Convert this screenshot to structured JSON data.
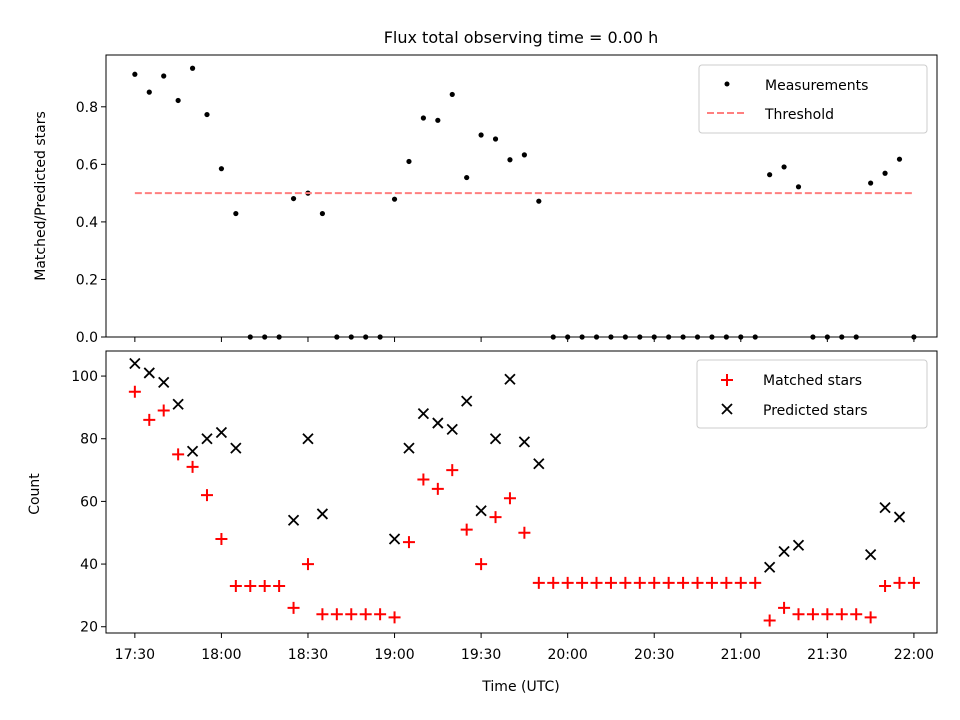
{
  "chart_data": [
    {
      "type": "scatter",
      "title": "Flux total observing time = 0.00 h",
      "xlabel": "",
      "ylabel": "Matched/Predicted stars",
      "xlim": [
        "17:20",
        "22:08"
      ],
      "ylim": [
        0,
        0.98
      ],
      "yticks": [
        0.0,
        0.2,
        0.4,
        0.6,
        0.8
      ],
      "ytick_labels": [
        "0.0",
        "0.2",
        "0.4",
        "0.6",
        "0.8"
      ],
      "legend_position": "top-right",
      "series": [
        {
          "name": "Measurements",
          "marker": "dot",
          "color": "#000000",
          "points": [
            [
              "17:30",
              0.913
            ],
            [
              "17:35",
              0.851
            ],
            [
              "17:40",
              0.907
            ],
            [
              "17:45",
              0.822
            ],
            [
              "17:50",
              0.934
            ],
            [
              "17:55",
              0.773
            ],
            [
              "18:00",
              0.585
            ],
            [
              "18:05",
              0.429
            ],
            [
              "18:10",
              0.0
            ],
            [
              "18:15",
              0.0
            ],
            [
              "18:20",
              0.0
            ],
            [
              "18:25",
              0.481
            ],
            [
              "18:30",
              0.5
            ],
            [
              "18:35",
              0.429
            ],
            [
              "18:40",
              0.0
            ],
            [
              "18:45",
              0.0
            ],
            [
              "18:50",
              0.0
            ],
            [
              "18:55",
              0.0
            ],
            [
              "19:00",
              0.479
            ],
            [
              "19:05",
              0.61
            ],
            [
              "19:10",
              0.761
            ],
            [
              "19:15",
              0.753
            ],
            [
              "19:20",
              0.843
            ],
            [
              "19:25",
              0.554
            ],
            [
              "19:30",
              0.702
            ],
            [
              "19:35",
              0.688
            ],
            [
              "19:40",
              0.616
            ],
            [
              "19:45",
              0.633
            ],
            [
              "19:50",
              0.472
            ],
            [
              "19:55",
              0.0
            ],
            [
              "20:00",
              0.0
            ],
            [
              "20:05",
              0.0
            ],
            [
              "20:10",
              0.0
            ],
            [
              "20:15",
              0.0
            ],
            [
              "20:20",
              0.0
            ],
            [
              "20:25",
              0.0
            ],
            [
              "20:30",
              0.0
            ],
            [
              "20:35",
              0.0
            ],
            [
              "20:40",
              0.0
            ],
            [
              "20:45",
              0.0
            ],
            [
              "20:50",
              0.0
            ],
            [
              "20:55",
              0.0
            ],
            [
              "21:00",
              0.0
            ],
            [
              "21:05",
              0.0
            ],
            [
              "21:10",
              0.564
            ],
            [
              "21:15",
              0.591
            ],
            [
              "21:20",
              0.522
            ],
            [
              "21:25",
              0.0
            ],
            [
              "21:30",
              0.0
            ],
            [
              "21:35",
              0.0
            ],
            [
              "21:40",
              0.0
            ],
            [
              "21:45",
              0.535
            ],
            [
              "21:50",
              0.569
            ],
            [
              "21:55",
              0.618
            ],
            [
              "22:00",
              0.0
            ]
          ]
        },
        {
          "name": "Threshold",
          "marker": "dashed-line",
          "color": "#ff7f7f",
          "points": [
            [
              "17:30",
              0.5
            ],
            [
              "22:00",
              0.5
            ]
          ]
        }
      ]
    },
    {
      "type": "scatter",
      "title": "",
      "xlabel": "Time (UTC)",
      "ylabel": "Count",
      "xlim": [
        "17:20",
        "22:08"
      ],
      "ylim": [
        18,
        108
      ],
      "yticks": [
        20,
        40,
        60,
        80,
        100
      ],
      "ytick_labels": [
        "20",
        "40",
        "60",
        "80",
        "100"
      ],
      "xticks": [
        "17:30",
        "18:00",
        "18:30",
        "19:00",
        "19:30",
        "20:00",
        "20:30",
        "21:00",
        "21:30",
        "22:00"
      ],
      "legend_position": "top-right",
      "series": [
        {
          "name": "Matched stars",
          "marker": "plus",
          "color": "#ff0000",
          "points": [
            [
              "17:30",
              95
            ],
            [
              "17:35",
              86
            ],
            [
              "17:40",
              89
            ],
            [
              "17:45",
              75
            ],
            [
              "17:50",
              71
            ],
            [
              "17:55",
              62
            ],
            [
              "18:00",
              48
            ],
            [
              "18:05",
              33
            ],
            [
              "18:10",
              33
            ],
            [
              "18:15",
              33
            ],
            [
              "18:20",
              33
            ],
            [
              "18:25",
              26
            ],
            [
              "18:30",
              40
            ],
            [
              "18:35",
              24
            ],
            [
              "18:40",
              24
            ],
            [
              "18:45",
              24
            ],
            [
              "18:50",
              24
            ],
            [
              "18:55",
              24
            ],
            [
              "19:00",
              23
            ],
            [
              "19:05",
              47
            ],
            [
              "19:10",
              67
            ],
            [
              "19:15",
              64
            ],
            [
              "19:20",
              70
            ],
            [
              "19:25",
              51
            ],
            [
              "19:30",
              40
            ],
            [
              "19:35",
              55
            ],
            [
              "19:40",
              61
            ],
            [
              "19:45",
              50
            ],
            [
              "19:50",
              34
            ],
            [
              "19:55",
              34
            ],
            [
              "20:00",
              34
            ],
            [
              "20:05",
              34
            ],
            [
              "20:10",
              34
            ],
            [
              "20:15",
              34
            ],
            [
              "20:20",
              34
            ],
            [
              "20:25",
              34
            ],
            [
              "20:30",
              34
            ],
            [
              "20:35",
              34
            ],
            [
              "20:40",
              34
            ],
            [
              "20:45",
              34
            ],
            [
              "20:50",
              34
            ],
            [
              "20:55",
              34
            ],
            [
              "21:00",
              34
            ],
            [
              "21:05",
              34
            ],
            [
              "21:10",
              22
            ],
            [
              "21:15",
              26
            ],
            [
              "21:20",
              24
            ],
            [
              "21:25",
              24
            ],
            [
              "21:30",
              24
            ],
            [
              "21:35",
              24
            ],
            [
              "21:40",
              24
            ],
            [
              "21:45",
              23
            ],
            [
              "21:50",
              33
            ],
            [
              "21:55",
              34
            ],
            [
              "22:00",
              34
            ]
          ]
        },
        {
          "name": "Predicted stars",
          "marker": "x",
          "color": "#000000",
          "points": [
            [
              "17:30",
              104
            ],
            [
              "17:35",
              101
            ],
            [
              "17:40",
              98
            ],
            [
              "17:45",
              91
            ],
            [
              "17:50",
              76
            ],
            [
              "17:55",
              80
            ],
            [
              "18:00",
              82
            ],
            [
              "18:05",
              77
            ],
            [
              "18:25",
              54
            ],
            [
              "18:30",
              80
            ],
            [
              "18:35",
              56
            ],
            [
              "19:00",
              48
            ],
            [
              "19:05",
              77
            ],
            [
              "19:10",
              88
            ],
            [
              "19:15",
              85
            ],
            [
              "19:20",
              83
            ],
            [
              "19:25",
              92
            ],
            [
              "19:30",
              57
            ],
            [
              "19:35",
              80
            ],
            [
              "19:40",
              99
            ],
            [
              "19:45",
              79
            ],
            [
              "19:50",
              72
            ],
            [
              "21:10",
              39
            ],
            [
              "21:15",
              44
            ],
            [
              "21:20",
              46
            ],
            [
              "21:45",
              43
            ],
            [
              "21:50",
              58
            ],
            [
              "21:55",
              55
            ]
          ]
        }
      ]
    }
  ]
}
